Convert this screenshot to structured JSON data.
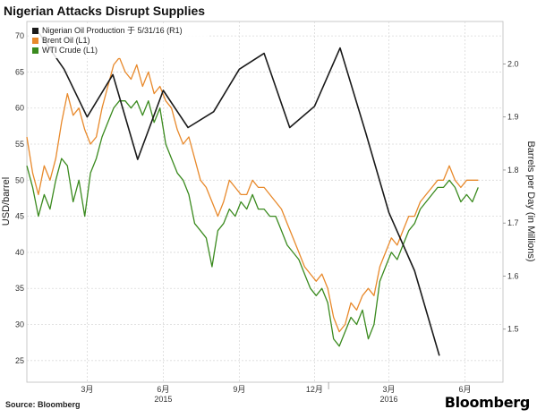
{
  "header": {
    "title": "Nigerian Attacks Disrupt Supplies"
  },
  "footer": {
    "source": "Source: Bloomberg",
    "brand": "Bloomberg"
  },
  "chart_data": {
    "type": "line",
    "title": "Nigerian Attacks Disrupt Supplies",
    "ylabel_left": "USD/barrel",
    "ylabel_right": "Barrels per Day (in Millions)",
    "ylim_left": [
      22,
      72
    ],
    "ylim_right": [
      1.4,
      2.08
    ],
    "left_ticks": [
      25,
      30,
      35,
      40,
      45,
      50,
      55,
      60,
      65,
      70
    ],
    "right_ticks": [
      1.5,
      1.6,
      1.7,
      1.8,
      1.9,
      2.0
    ],
    "right_tick_labels": [
      "1.5",
      "1.6",
      "1.7",
      "1.8",
      "1.9",
      "2.0"
    ],
    "x_ticks": [
      {
        "t": "2014-03-15",
        "label": "3月"
      },
      {
        "t": "2014-06-15",
        "label": "6月"
      },
      {
        "t": "2014-09-15",
        "label": "9月"
      },
      {
        "t": "2014-12-15",
        "label": "12月"
      },
      {
        "t": "2015-03-15",
        "label": "3月"
      },
      {
        "t": "2015-06-15",
        "label": "6月"
      }
    ],
    "year_labels": [
      {
        "t": "2014-06-15",
        "label": "2015"
      },
      {
        "t": "2015-03-15",
        "label": "2016"
      }
    ],
    "xlim": [
      "2014-01-01",
      "2015-07-31"
    ],
    "grid": true,
    "legend_position": "top-left",
    "series": [
      {
        "name": "Nigerian Oil Production 于 5/31/16 (R1)",
        "color": "#1a1a1a",
        "axis": "right",
        "points": [
          [
            "2014-01-15",
            2.06
          ],
          [
            "2014-02-15",
            1.99
          ],
          [
            "2014-03-15",
            1.9
          ],
          [
            "2014-04-15",
            1.98
          ],
          [
            "2014-05-15",
            1.82
          ],
          [
            "2014-06-15",
            1.95
          ],
          [
            "2014-07-15",
            1.88
          ],
          [
            "2014-08-15",
            1.91
          ],
          [
            "2014-09-15",
            1.99
          ],
          [
            "2014-10-15",
            2.02
          ],
          [
            "2014-11-15",
            1.88
          ],
          [
            "2014-12-15",
            1.92
          ],
          [
            "2015-01-15",
            2.03
          ],
          [
            "2015-02-15",
            1.87
          ],
          [
            "2015-03-15",
            1.72
          ],
          [
            "2015-04-15",
            1.61
          ],
          [
            "2015-05-15",
            1.45
          ]
        ]
      },
      {
        "name": "Brent Oil (L1)",
        "color": "#e8892b",
        "axis": "left",
        "points": [
          [
            "2014-01-01",
            56
          ],
          [
            "2014-01-08",
            51
          ],
          [
            "2014-01-15",
            48
          ],
          [
            "2014-01-22",
            52
          ],
          [
            "2014-01-29",
            50
          ],
          [
            "2014-02-05",
            53
          ],
          [
            "2014-02-12",
            58
          ],
          [
            "2014-02-19",
            62
          ],
          [
            "2014-02-26",
            59
          ],
          [
            "2014-03-05",
            60
          ],
          [
            "2014-03-12",
            57
          ],
          [
            "2014-03-19",
            55
          ],
          [
            "2014-03-26",
            56
          ],
          [
            "2014-04-02",
            60
          ],
          [
            "2014-04-09",
            63
          ],
          [
            "2014-04-16",
            66
          ],
          [
            "2014-04-23",
            67
          ],
          [
            "2014-04-30",
            65
          ],
          [
            "2014-05-07",
            64
          ],
          [
            "2014-05-14",
            66
          ],
          [
            "2014-05-21",
            63
          ],
          [
            "2014-05-28",
            65
          ],
          [
            "2014-06-04",
            62
          ],
          [
            "2014-06-11",
            63
          ],
          [
            "2014-06-18",
            61
          ],
          [
            "2014-06-25",
            60
          ],
          [
            "2014-07-02",
            57
          ],
          [
            "2014-07-09",
            55
          ],
          [
            "2014-07-16",
            56
          ],
          [
            "2014-07-23",
            53
          ],
          [
            "2014-07-30",
            50
          ],
          [
            "2014-08-06",
            49
          ],
          [
            "2014-08-13",
            47
          ],
          [
            "2014-08-20",
            45
          ],
          [
            "2014-08-27",
            47
          ],
          [
            "2014-09-03",
            50
          ],
          [
            "2014-09-10",
            49
          ],
          [
            "2014-09-17",
            48
          ],
          [
            "2014-09-24",
            48
          ],
          [
            "2014-10-01",
            50
          ],
          [
            "2014-10-08",
            49
          ],
          [
            "2014-10-15",
            49
          ],
          [
            "2014-10-22",
            48
          ],
          [
            "2014-10-29",
            47
          ],
          [
            "2014-11-05",
            46
          ],
          [
            "2014-11-12",
            44
          ],
          [
            "2014-11-19",
            42
          ],
          [
            "2014-11-26",
            40
          ],
          [
            "2014-12-03",
            38
          ],
          [
            "2014-12-10",
            37
          ],
          [
            "2014-12-17",
            36
          ],
          [
            "2014-12-24",
            37
          ],
          [
            "2014-12-31",
            35
          ],
          [
            "2015-01-07",
            31
          ],
          [
            "2015-01-14",
            29
          ],
          [
            "2015-01-21",
            30
          ],
          [
            "2015-01-28",
            33
          ],
          [
            "2015-02-04",
            32
          ],
          [
            "2015-02-11",
            34
          ],
          [
            "2015-02-18",
            35
          ],
          [
            "2015-02-25",
            34
          ],
          [
            "2015-03-04",
            38
          ],
          [
            "2015-03-11",
            40
          ],
          [
            "2015-03-18",
            42
          ],
          [
            "2015-03-25",
            41
          ],
          [
            "2015-04-01",
            43
          ],
          [
            "2015-04-08",
            45
          ],
          [
            "2015-04-15",
            45
          ],
          [
            "2015-04-22",
            47
          ],
          [
            "2015-04-29",
            48
          ],
          [
            "2015-05-06",
            49
          ],
          [
            "2015-05-13",
            50
          ],
          [
            "2015-05-20",
            50
          ],
          [
            "2015-05-27",
            52
          ],
          [
            "2015-06-03",
            50
          ],
          [
            "2015-06-10",
            49
          ],
          [
            "2015-06-17",
            50
          ],
          [
            "2015-06-24",
            50
          ],
          [
            "2015-07-01",
            50
          ]
        ]
      },
      {
        "name": "WTI Crude (L1)",
        "color": "#3a8a1e",
        "axis": "left",
        "points": [
          [
            "2014-01-01",
            52
          ],
          [
            "2014-01-08",
            49
          ],
          [
            "2014-01-15",
            45
          ],
          [
            "2014-01-22",
            48
          ],
          [
            "2014-01-29",
            46
          ],
          [
            "2014-02-05",
            50
          ],
          [
            "2014-02-12",
            53
          ],
          [
            "2014-02-19",
            52
          ],
          [
            "2014-02-26",
            47
          ],
          [
            "2014-03-05",
            50
          ],
          [
            "2014-03-12",
            45
          ],
          [
            "2014-03-19",
            51
          ],
          [
            "2014-03-26",
            53
          ],
          [
            "2014-04-02",
            56
          ],
          [
            "2014-04-09",
            58
          ],
          [
            "2014-04-16",
            60
          ],
          [
            "2014-04-23",
            61
          ],
          [
            "2014-04-30",
            61
          ],
          [
            "2014-05-07",
            60
          ],
          [
            "2014-05-14",
            61
          ],
          [
            "2014-05-21",
            59
          ],
          [
            "2014-05-28",
            61
          ],
          [
            "2014-06-04",
            58
          ],
          [
            "2014-06-11",
            60
          ],
          [
            "2014-06-18",
            55
          ],
          [
            "2014-06-25",
            53
          ],
          [
            "2014-07-02",
            51
          ],
          [
            "2014-07-09",
            50
          ],
          [
            "2014-07-16",
            48
          ],
          [
            "2014-07-23",
            44
          ],
          [
            "2014-07-30",
            43
          ],
          [
            "2014-08-06",
            42
          ],
          [
            "2014-08-13",
            38
          ],
          [
            "2014-08-20",
            43
          ],
          [
            "2014-08-27",
            44
          ],
          [
            "2014-09-03",
            46
          ],
          [
            "2014-09-10",
            45
          ],
          [
            "2014-09-17",
            47
          ],
          [
            "2014-09-24",
            46
          ],
          [
            "2014-10-01",
            48
          ],
          [
            "2014-10-08",
            46
          ],
          [
            "2014-10-15",
            46
          ],
          [
            "2014-10-22",
            45
          ],
          [
            "2014-10-29",
            45
          ],
          [
            "2014-11-05",
            43
          ],
          [
            "2014-11-12",
            41
          ],
          [
            "2014-11-19",
            40
          ],
          [
            "2014-11-26",
            39
          ],
          [
            "2014-12-03",
            37
          ],
          [
            "2014-12-10",
            35
          ],
          [
            "2014-12-17",
            34
          ],
          [
            "2014-12-24",
            35
          ],
          [
            "2014-12-31",
            33
          ],
          [
            "2015-01-07",
            28
          ],
          [
            "2015-01-14",
            27
          ],
          [
            "2015-01-21",
            29
          ],
          [
            "2015-01-28",
            31
          ],
          [
            "2015-02-04",
            30
          ],
          [
            "2015-02-11",
            32
          ],
          [
            "2015-02-18",
            28
          ],
          [
            "2015-02-25",
            30
          ],
          [
            "2015-03-04",
            36
          ],
          [
            "2015-03-11",
            38
          ],
          [
            "2015-03-18",
            40
          ],
          [
            "2015-03-25",
            39
          ],
          [
            "2015-04-01",
            41
          ],
          [
            "2015-04-08",
            43
          ],
          [
            "2015-04-15",
            44
          ],
          [
            "2015-04-22",
            46
          ],
          [
            "2015-04-29",
            47
          ],
          [
            "2015-05-06",
            48
          ],
          [
            "2015-05-13",
            49
          ],
          [
            "2015-05-20",
            49
          ],
          [
            "2015-05-27",
            50
          ],
          [
            "2015-06-03",
            49
          ],
          [
            "2015-06-10",
            47
          ],
          [
            "2015-06-17",
            48
          ],
          [
            "2015-06-24",
            47
          ],
          [
            "2015-07-01",
            49
          ]
        ]
      }
    ]
  }
}
